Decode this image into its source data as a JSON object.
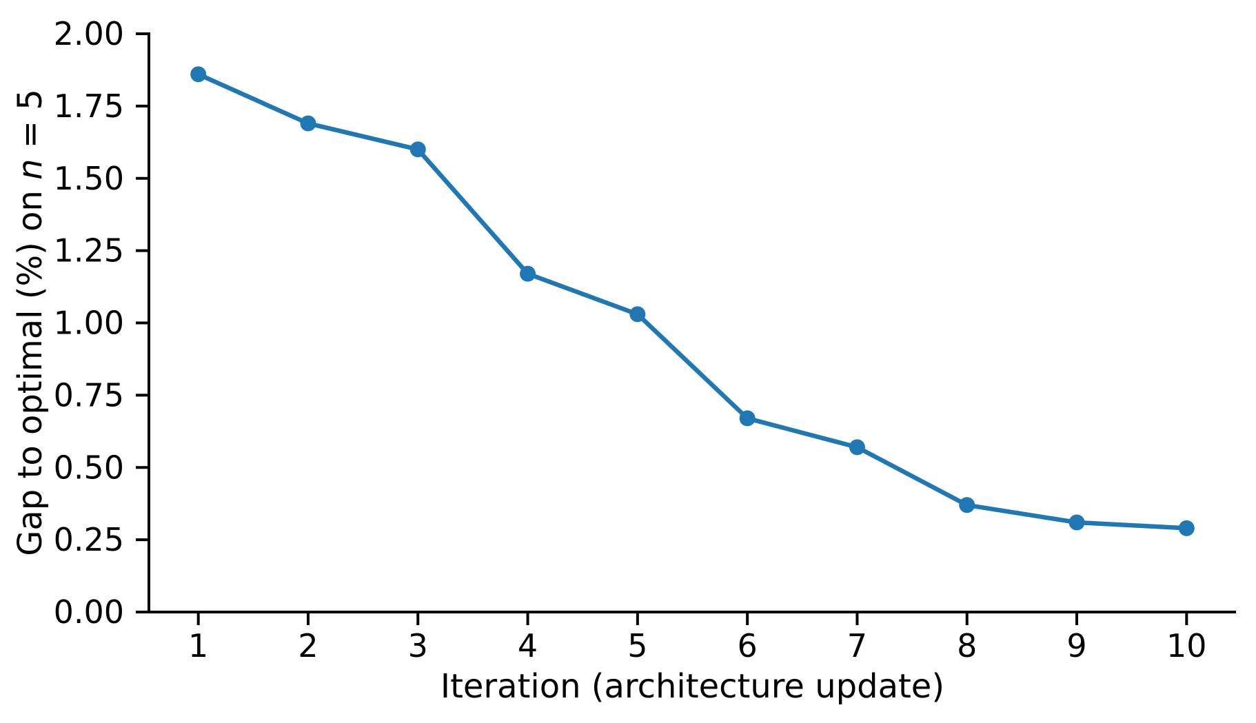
{
  "chart_data": {
    "type": "line",
    "title": "",
    "xlabel": "Iteration (architecture update)",
    "ylabel": "Gap to optimal (%) on n = 5",
    "ylabel_parts": {
      "prefix": "Gap to optimal (%) on ",
      "variable": "n",
      "suffix": " = 5"
    },
    "x": [
      1,
      2,
      3,
      4,
      5,
      6,
      7,
      8,
      9,
      10
    ],
    "series": [
      {
        "name": "gap_to_optimal_pct",
        "values": [
          1.86,
          1.69,
          1.6,
          1.17,
          1.03,
          0.67,
          0.57,
          0.37,
          0.31,
          0.29
        ]
      }
    ],
    "x_tick_labels": [
      "1",
      "2",
      "3",
      "4",
      "5",
      "6",
      "7",
      "8",
      "9",
      "10"
    ],
    "y_ticks": [
      0,
      0.25,
      0.5,
      0.75,
      1,
      1.25,
      1.5,
      1.75,
      2
    ],
    "y_tick_labels": [
      "0.00",
      "0.25",
      "0.50",
      "0.75",
      "1.00",
      "1.25",
      "1.50",
      "1.75",
      "2.00"
    ],
    "xlim": [
      0.55,
      10.45
    ],
    "ylim": [
      0.0,
      2.0
    ],
    "grid": false,
    "legend": "none",
    "line_color": "#1f77b4",
    "marker": "circle",
    "axis_color": "#000000",
    "background_color": "#ffffff"
  }
}
